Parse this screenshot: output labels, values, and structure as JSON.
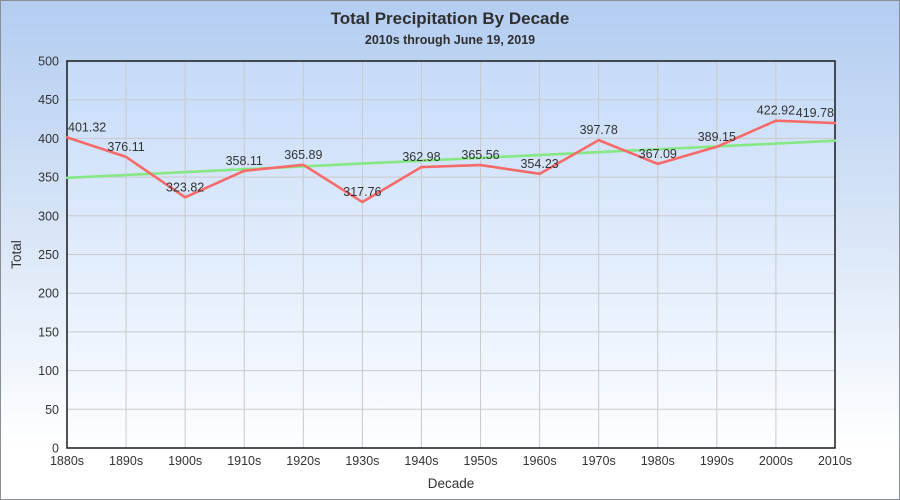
{
  "header": {
    "title": "Total Precipitation By Decade",
    "subtitle": "2010s through June 19, 2019"
  },
  "chart_data": {
    "type": "line",
    "title": "Total Precipitation By Decade",
    "subtitle": "2010s through June 19, 2019",
    "xlabel": "Decade",
    "ylabel": "Total",
    "ylim": [
      0,
      500
    ],
    "ytick_step": 50,
    "grid": true,
    "legend_position": "none",
    "categories": [
      "1880s",
      "1890s",
      "1900s",
      "1910s",
      "1920s",
      "1930s",
      "1940s",
      "1950s",
      "1960s",
      "1970s",
      "1980s",
      "1990s",
      "2000s",
      "2010s"
    ],
    "series": [
      {
        "name": "Total precipitation",
        "type": "line",
        "color": "#f76a6a",
        "data_labels": true,
        "values": [
          401.32,
          376.11,
          323.82,
          358.11,
          365.89,
          317.76,
          362.98,
          365.56,
          354.23,
          397.78,
          367.09,
          389.15,
          422.92,
          419.78
        ]
      },
      {
        "name": "Trend line",
        "type": "trend",
        "color": "#85e885",
        "endpoints": [
          349.08,
          397.0
        ]
      }
    ],
    "colors": {
      "plot_bg_top": "#c6dbf9",
      "plot_bg_bottom": "#fdfeff",
      "page_bg_top": "#b3cdf1",
      "page_bg_bottom": "#ffffff",
      "grid": "#c9c9c9",
      "plot_border": "#1a1a1a",
      "text": "#333333"
    }
  }
}
